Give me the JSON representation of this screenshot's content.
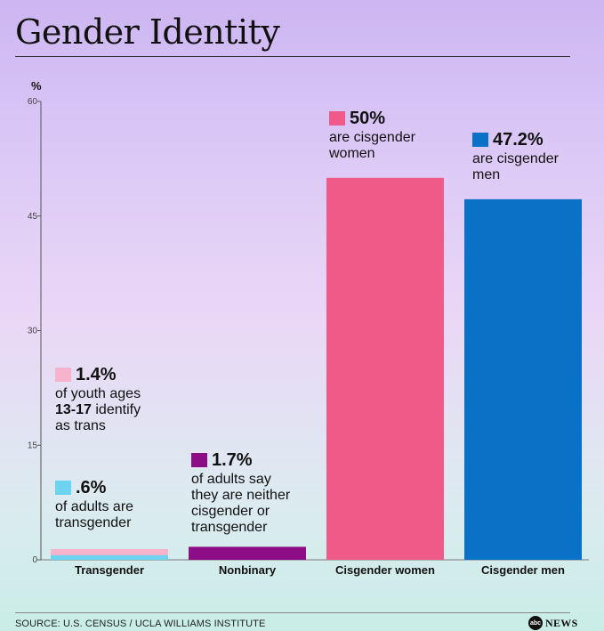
{
  "title": "Gender Identity",
  "unit_label": "%",
  "source": "SOURCE: U.S. CENSUS / UCLA WILLIAMS INSTITUTE",
  "logo": {
    "mark": "abc",
    "text": "NEWS"
  },
  "annotations": {
    "youth": {
      "value": "1.4%",
      "line1": "of youth ages",
      "bold": "13-17",
      "line2_rest": " identify",
      "line3": "as trans",
      "color": "#f6b3cb"
    },
    "adults_trans": {
      "value": ".6%",
      "text": "of adults are\ntransgender",
      "color": "#6ed3ee"
    },
    "nonbinary": {
      "value": "1.7%",
      "text": "of adults say\nthey are neither\ncisgender or\ntransgender",
      "color": "#8c0d86"
    },
    "women": {
      "value": "50%",
      "text": "are cisgender\nwomen",
      "color": "#f05a88"
    },
    "men": {
      "value": "47.2%",
      "text": "are cisgender\nmen",
      "color": "#0a72c6"
    }
  },
  "chart_data": {
    "type": "bar",
    "title": "Gender Identity",
    "ylabel": "%",
    "ylim": [
      0,
      60
    ],
    "yticks": [
      0,
      15,
      30,
      45,
      60
    ],
    "categories": [
      "Transgender",
      "Nonbinary",
      "Cisgender women",
      "Cisgender men"
    ],
    "values": [
      0.6,
      1.7,
      50,
      47.2
    ],
    "colors": [
      "#6ed3ee",
      "#8c0d86",
      "#f05a88",
      "#0a72c6"
    ],
    "overlay": {
      "category": "Transgender",
      "value": 1.4,
      "label": "youth ages 13-17",
      "color": "#f6b3cb"
    },
    "grid": false
  }
}
